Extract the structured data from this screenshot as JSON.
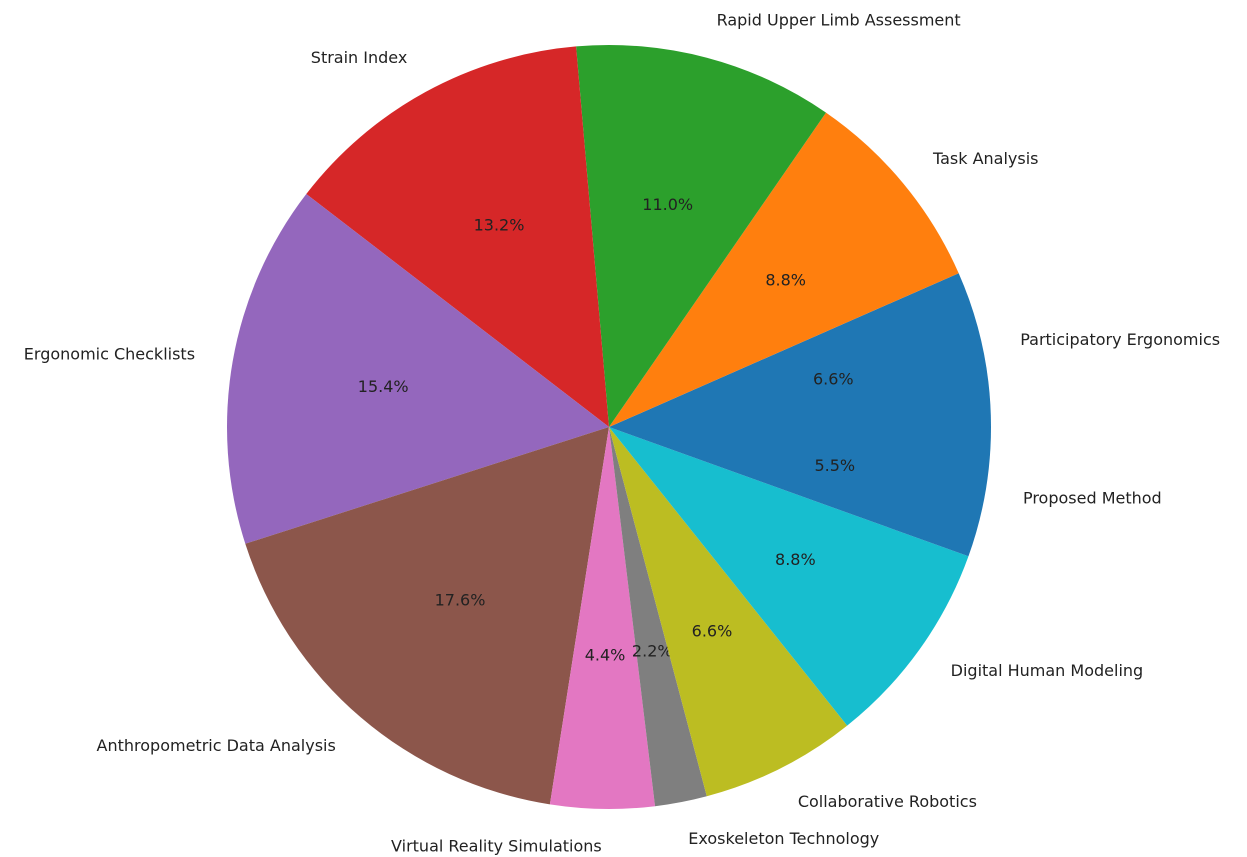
{
  "chart_data": {
    "type": "pie",
    "categories": [
      "Participatory Ergonomics",
      "Task Analysis",
      "Rapid Upper Limb Assessment",
      "Strain Index",
      "Ergonomic Checklists",
      "Anthropometric Data Analysis",
      "Virtual Reality Simulations",
      "Exoskeleton Technology",
      "Collaborative Robotics",
      "Digital Human Modeling",
      "Proposed Method"
    ],
    "values": [
      6.6,
      8.8,
      11.0,
      13.2,
      15.4,
      17.6,
      4.4,
      2.2,
      6.6,
      8.8,
      5.5
    ],
    "value_labels": [
      "6.6%",
      "8.8%",
      "11.0%",
      "13.2%",
      "15.4%",
      "17.6%",
      "4.4%",
      "2.2%",
      "6.6%",
      "8.8%",
      "5.5%"
    ],
    "colors": [
      "#1f77b4",
      "#ff7f0e",
      "#2ca02c",
      "#d62728",
      "#9467bd",
      "#8c564b",
      "#e377c2",
      "#7f7f7f",
      "#bcbd22",
      "#17becf",
      "#1f77b4"
    ],
    "start_angle": 0,
    "counterclockwise": true
  }
}
